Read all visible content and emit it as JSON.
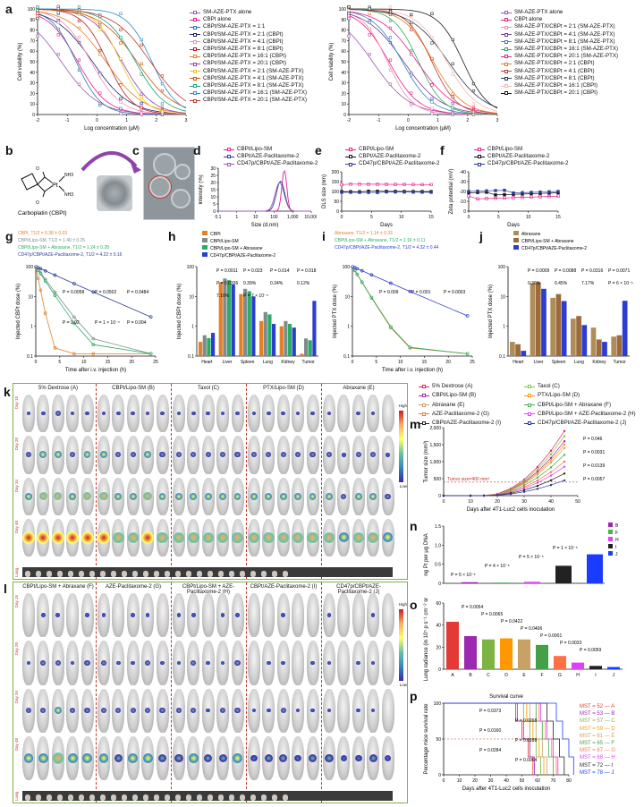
{
  "panel_labels": {
    "a": "a",
    "b": "b",
    "c": "c",
    "d": "d",
    "e": "e",
    "f": "f",
    "g": "g",
    "h": "h",
    "i": "i",
    "j": "j",
    "k": "k",
    "l": "l",
    "m": "m",
    "n": "n",
    "o": "o",
    "p": "p"
  },
  "a_left": {
    "ylabel": "Cell viability (%)",
    "xlabel": "Log concentration (μM)",
    "yticks": [
      "0",
      "10",
      "20",
      "30",
      "40",
      "50",
      "60",
      "70",
      "80",
      "90",
      "100"
    ],
    "xticks": [
      "-2",
      "-1",
      "0",
      "1",
      "2",
      "3"
    ],
    "legend": [
      {
        "label": "SM-AZE-PTX alone",
        "color": "#9b59b6"
      },
      {
        "label": "CBPt alone",
        "color": "#e91e8c"
      },
      {
        "label": "CBPt/SM-AZE-PTX = 1:1",
        "color": "#1f77b4"
      },
      {
        "label": "CBPt/SM-AZE-PTX = 2:1 (CBPt)",
        "color": "#1a237e"
      },
      {
        "label": "CBPt/SM-AZE-PTX = 4:1 (CBPt)",
        "color": "#f28cb1"
      },
      {
        "label": "CBPt/SM-AZE-PTX = 8:1 (CBPt)",
        "color": "#b71c1c"
      },
      {
        "label": "CBPt/SM-AZE-PTX = 16:1 (CBPt)",
        "color": "#e67e22"
      },
      {
        "label": "CBPt/SM-AZE-PTX = 20:1 (CBPt)",
        "color": "#8e44ad"
      },
      {
        "label": "CBPt/SM-AZE-PTX = 2:1 (SM-AZE-PTX)",
        "color": "#f1c40f"
      },
      {
        "label": "CBPt/SM-AZE-PTX = 4:1 (SM-AZE-PTX)",
        "color": "#d35400"
      },
      {
        "label": "CBPt/SM-AZE-PTX = 8:1 (SM-AZE-PTX)",
        "color": "#16a085"
      },
      {
        "label": "CBPt/SM-AZE-PTX = 16:1 (SM-AZE-PTX)",
        "color": "#2e86c1"
      },
      {
        "label": "CBPt/SM-AZE-PTX = 20:1 (SM-AZE-PTX)",
        "color": "#c0392b"
      }
    ]
  },
  "a_right": {
    "ylabel": "Cell viability (%)",
    "xlabel": "Log concentration (μM)",
    "yticks": [
      "0",
      "10",
      "20",
      "30",
      "40",
      "50",
      "60",
      "70",
      "80",
      "90",
      "100"
    ],
    "xticks": [
      "-2",
      "-1",
      "0",
      "1",
      "2",
      "3"
    ],
    "legend": [
      {
        "label": "SM-AZE-PTX alone",
        "color": "#9b59b6"
      },
      {
        "label": "CBPt alone",
        "color": "#e91e8c"
      },
      {
        "label": "SM-AZE-PTX/CBPt = 2:1 (SM-AZE-PTX)",
        "color": "#f28cb1"
      },
      {
        "label": "SM-AZE-PTX/CBPt = 4:1 (SM-AZE-PTX)",
        "color": "#7d3c98"
      },
      {
        "label": "SM-AZE-PTX/CBPt = 8:1 (SM-AZE-PTX)",
        "color": "#2e86c1"
      },
      {
        "label": "SM-AZE-PTX/CBPt = 16:1 (SM-AZE-PTX)",
        "color": "#27ae60"
      },
      {
        "label": "SM-AZE-PTX/CBPt = 20:1 (SM-AZE-PTX)",
        "color": "#e91e8c"
      },
      {
        "label": "SM-AZE-PTX/CBPt = 2:1 (CBPt)",
        "color": "#e67e22"
      },
      {
        "label": "SM-AZE-PTX/CBPt = 4:1 (CBPt)",
        "color": "#c0392b"
      },
      {
        "label": "SM-AZE-PTX/CBPt = 8:1 (CBPt)",
        "color": "#2c3e50"
      },
      {
        "label": "SM-AZE-PTX/CBPt = 16:1 (CBPt)",
        "color": "#f5b7b1"
      },
      {
        "label": "SM-AZE-PTX/CBPt = 20:1 (CBPt)",
        "color": "#1a1a1a"
      }
    ]
  },
  "b": {
    "caption": "Carboplatin (CBPt)",
    "atoms": {
      "pt": "Pt",
      "nh3a": "NH3",
      "nh3b": "NH3",
      "o": "O"
    }
  },
  "d": {
    "ylabel": "Intensity (%)",
    "xlabel": "Size (d.nm)",
    "xticks": [
      "0.1",
      "1",
      "10",
      "100",
      "1,000",
      "10,000"
    ],
    "yticks": [
      "0",
      "5",
      "10",
      "15",
      "20",
      "25",
      "30"
    ],
    "legend": [
      {
        "label": "CBPt/Lipo-SM",
        "color": "#e91e8c"
      },
      {
        "label": "CBPt/AZE-Paclitaxome-2",
        "color": "#2c3e99"
      },
      {
        "label": "CD47p/CBPt/AZE-Paclitaxome-2",
        "color": "#9b59b6"
      }
    ]
  },
  "e": {
    "ylabel": "DLS size (nm)",
    "xlabel": "Days",
    "xticks": [
      "0",
      "5",
      "10",
      "15"
    ],
    "yticks": [
      "0",
      "50",
      "100",
      "150",
      "200"
    ],
    "legend": [
      {
        "label": "CBPt/Lipo-SM",
        "color": "#e91e8c"
      },
      {
        "label": "CBPt/AZE-Paclitaxome-2",
        "color": "#111111"
      },
      {
        "label": "CD47p/CBPt/AZE-Paclitaxome-2",
        "color": "#2c3e99"
      }
    ]
  },
  "f": {
    "ylabel": "Zeta potential (mV)",
    "xlabel": "Days",
    "xticks": [
      "0",
      "5",
      "10",
      "15"
    ],
    "yticks": [
      "0",
      "-10",
      "-20",
      "-30",
      "-40"
    ],
    "legend": [
      {
        "label": "CBPt/Lipo-SM",
        "color": "#e91e8c"
      },
      {
        "label": "CBPt/AZE-Paclitaxome-2",
        "color": "#111111"
      },
      {
        "label": "CD47p/CBPt/AZE-Paclitaxome-2",
        "color": "#2c3e99"
      }
    ]
  },
  "g": {
    "ylabel": "Injected CBPt dose (%)",
    "xlabel": "Time after i.v. injection (h)",
    "xticks": [
      "0",
      "5",
      "10",
      "15",
      "20",
      "25"
    ],
    "yticks": [
      "0.1",
      "1",
      "10",
      "100"
    ],
    "legend": [
      {
        "label": "CBPt, T1/2 = 0.38 ± 0.03",
        "color": "#e67e22"
      },
      {
        "label": "CBPt/Lipo-SM, T1/2 = 1.40 ± 0.25",
        "color": "#7f8c8d"
      },
      {
        "label": "CBPt/Lipo-SM + Abraxane, T1/2 = 1.24 ± 0.28",
        "color": "#27ae60"
      },
      {
        "label": "CD47p/CBPt/AZE-Paclitaxome-2, T1/2 = 4.22 ± 0.16",
        "color": "#2c3e99"
      }
    ],
    "pvals": [
      "P = 0.0058",
      "P = 0.0502",
      "P = 0.0484",
      "P = 0.02",
      "P = 1 × 10⁻⁴",
      "P = 0.004"
    ]
  },
  "h": {
    "ylabel": "Injected CBPt dose (%)",
    "categories": [
      "Heart",
      "Liver",
      "Spleen",
      "Lung",
      "Kidney",
      "Tumor"
    ],
    "yticks": [
      "0.1",
      "1",
      "10",
      "100"
    ],
    "legend": [
      {
        "label": "CBPt",
        "color": "#e67e22"
      },
      {
        "label": "CBPt/Lipo-SM",
        "color": "#7f8c8d"
      },
      {
        "label": "CBPt/Lipo-SM + Abraxane",
        "color": "#27ae60"
      },
      {
        "label": "CD47p/CBPt/AZE-Paclitaxome-2",
        "color": "#2c3ed0"
      }
    ],
    "pvals": [
      "P = 0.0011",
      "P = 0.023",
      "P = 0.014",
      "P = 0.018",
      "P = 0.0336",
      "0.39%",
      "0.34%",
      "0.12%",
      "7.10%",
      "P = 7 × 10⁻⁴"
    ]
  },
  "i": {
    "ylabel": "Injected PTX dose (%)",
    "xlabel": "Time after i.v. injection (h)",
    "xticks": [
      "0",
      "5",
      "10",
      "15",
      "20",
      "25"
    ],
    "yticks": [
      "0.1",
      "1",
      "10",
      "100"
    ],
    "legend": [
      {
        "label": "Abraxane, T1/2 = 1.14 ± 0.33",
        "color": "#e67e22"
      },
      {
        "label": "CBPt/Lipo-SM + Abraxane, T1/2 = 1.16 ± 0.11",
        "color": "#27ae60"
      },
      {
        "label": "CD47p/CBPt/AZE-Paclitaxome-2, T1/2 = 4.32 ± 0.44",
        "color": "#2c3ed0"
      }
    ],
    "pvals": [
      "P = 0.009",
      "P = 0.001",
      "P = 0.0003"
    ]
  },
  "j": {
    "ylabel": "Injected PTX dose (%)",
    "categories": [
      "Heart",
      "Liver",
      "Spleen",
      "Lung",
      "Kidney",
      "Tumor"
    ],
    "yticks": [
      "0.1",
      "1",
      "10",
      "100"
    ],
    "legend": [
      {
        "label": "Abraxane",
        "color": "#b08d57"
      },
      {
        "label": "CBPt/Lipo-SM + Abraxane",
        "color": "#9c6b3c"
      },
      {
        "label": "CD47p/CBPt/AZE-Paclitaxome-2",
        "color": "#2c3ed0"
      }
    ],
    "pvals": [
      "P = 0.0009",
      "P = 0.0088",
      "P = 0.0316",
      "P = 0.0071",
      "0.36%",
      "0.45%",
      "7.17%",
      "P = 6 × 10⁻⁶"
    ]
  },
  "k": {
    "groups": [
      "5% Dextrose (A)",
      "CBPt/Lipo-SM (B)",
      "Taxol (C)",
      "PTX/Lipo-SM (D)",
      "Abraxane (E)"
    ],
    "rows": [
      "Day 15",
      "Day 20",
      "Day 34",
      "Day 48"
    ],
    "lung": "Lung",
    "high": "High",
    "low": "Low"
  },
  "l": {
    "groups": [
      "CBPt/Lipo-SM + Abraxane (F)",
      "AZE-Paclitaxome-2 (G)",
      "CBPt/Lipo-SM + AZE-Paclitaxome-2 (H)",
      "CBPt/AZE-Paclitaxome-2 (I)",
      "CD47p/CBPt/AZE-Paclitaxome-2 (J)"
    ],
    "rows": [
      "Day 15",
      "Day 20",
      "Day 34",
      "Day 48"
    ],
    "lung": "Lung",
    "high": "High",
    "low": "Low"
  },
  "m_legend": [
    {
      "label": "5% Dextrose (A)",
      "color": "#e91e63"
    },
    {
      "label": "Taxol (C)",
      "color": "#8bc34a"
    },
    {
      "label": "CBPt/Lipo-SM (B)",
      "color": "#9c27b0"
    },
    {
      "label": "PTX/Lipo-SM (D)",
      "color": "#ff9800"
    },
    {
      "label": "Abraxane (E)",
      "color": "#c8a165"
    },
    {
      "label": "CBPt/Lipo-SM + Abraxane (F)",
      "color": "#4caf50"
    },
    {
      "label": "AZE-Paclitaxome-2 (G)",
      "color": "#ff7043"
    },
    {
      "label": "CBPt/Lipo-SM + AZE-Paclitaxome-2 (H)",
      "color": "#e040fb"
    },
    {
      "label": "CBPt/AZE-Paclitaxome-2 (I)",
      "color": "#222222"
    },
    {
      "label": "CD47p/CBPt/AZE-Paclitaxome-2 (J)",
      "color": "#283593"
    }
  ],
  "m": {
    "ylabel": "Tumor size (mm³)",
    "xlabel": "Days after 4T1-Luc2 cells inoculation",
    "xticks": [
      "0",
      "10",
      "20",
      "30",
      "40",
      "50"
    ],
    "yticks": [
      "0",
      "500",
      "1,000",
      "1,500",
      "2,000"
    ],
    "annotation": "Tumor size=400 mm³",
    "pvals": [
      "P = 0.046",
      "P = 0.0031",
      "P = 0.0139",
      "P = 0.0057"
    ]
  },
  "n": {
    "ylabel": "ng Pt per μg DNA",
    "yticks": [
      "0",
      "0.5",
      "1.0",
      "1.5"
    ],
    "categories": [
      "B",
      "F",
      "H",
      "I",
      "J"
    ],
    "colors": [
      "#9c27b0",
      "#4caf50",
      "#e040fb",
      "#222222",
      "#1a3cff"
    ],
    "pvals": [
      "P = 5 × 10⁻⁵",
      "P = 4 × 10⁻⁵",
      "P = 5 × 10⁻⁵",
      "P = 1 × 10⁻⁵"
    ]
  },
  "o": {
    "ylabel": "Lung radiance (in 10⁵ p s⁻¹ cm⁻² sr⁻¹)",
    "yticks": [
      "0",
      "20",
      "40",
      "60"
    ],
    "categories": [
      "A",
      "B",
      "C",
      "D",
      "E",
      "F",
      "G",
      "H",
      "I",
      "J"
    ],
    "colors": [
      "#e53935",
      "#9c27b0",
      "#7cb342",
      "#ff9800",
      "#c8a165",
      "#43a047",
      "#ff7043",
      "#e040fb",
      "#222222",
      "#1a3cff"
    ],
    "pvals": [
      "P = 0.0054",
      "P = 0.0065",
      "P = 0.0422",
      "P = 0.0406",
      "P = 0.0001",
      "P = 0.0033",
      "P = 0.0059"
    ]
  },
  "p": {
    "title": "Survival curve",
    "ylabel": "Percentage mice survival rate",
    "xlabel": "Days after 4T1-Luc2 cells inoculation",
    "xticks": [
      "0",
      "10",
      "20",
      "30",
      "40",
      "50",
      "60",
      "70",
      "80"
    ],
    "yticks": [
      "0",
      "50",
      "100"
    ],
    "pvals": [
      "P = 0.0373",
      "P = 0.0268",
      "P = 0.0160",
      "P = 0.0188",
      "P = 0.0284",
      "P = 0.0064"
    ],
    "mst": [
      {
        "label": "MST = 52",
        "group": "A",
        "color": "#e53935"
      },
      {
        "label": "MST = 53",
        "group": "B",
        "color": "#9c27b0"
      },
      {
        "label": "MST = 57",
        "group": "C",
        "color": "#7cb342"
      },
      {
        "label": "MST = 59",
        "group": "D",
        "color": "#ff9800"
      },
      {
        "label": "MST = 61",
        "group": "E",
        "color": "#c8a165"
      },
      {
        "label": "MST = 65",
        "group": "F",
        "color": "#43a047"
      },
      {
        "label": "MST = 67",
        "group": "G",
        "color": "#ff7043"
      },
      {
        "label": "MST = 68",
        "group": "H",
        "color": "#e040fb"
      },
      {
        "label": "MST = 72",
        "group": "I",
        "color": "#222222"
      },
      {
        "label": "MST = 78",
        "group": "J",
        "color": "#1a3cff"
      }
    ]
  }
}
